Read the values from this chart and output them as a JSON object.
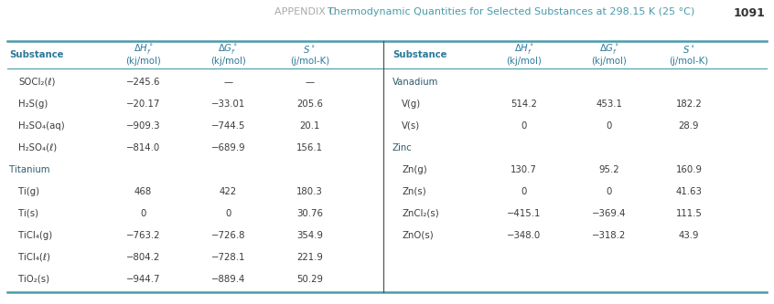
{
  "title_appendix": "APPENDIX C",
  "title_main": "  Thermodynamic Quantities for Selected Substances at 298.15 K (25 °C)",
  "page_num": "1091",
  "bg_color": "#ffffff",
  "teal_line_color": "#4a9aaa",
  "header_text_color": "#2d7a9a",
  "section_header_color": "#2d5a6e",
  "row_text_color": "#3a3a3a",
  "left_table": {
    "sections": [
      {
        "section_header": null,
        "rows": [
          {
            "substance": "SOCl₂(ℓ)",
            "dH": "−245.6",
            "dG": "—",
            "S": "—"
          },
          {
            "substance": "H₂S(g)",
            "dH": "−20.17",
            "dG": "−33.01",
            "S": "205.6"
          },
          {
            "substance": "H₂SO₄(aq)",
            "dH": "−909.3",
            "dG": "−744.5",
            "S": "20.1"
          },
          {
            "substance": "H₂SO₄(ℓ)",
            "dH": "−814.0",
            "dG": "−689.9",
            "S": "156.1"
          }
        ]
      },
      {
        "section_header": "Titanium",
        "rows": [
          {
            "substance": "Ti(g)",
            "dH": "468",
            "dG": "422",
            "S": "180.3"
          },
          {
            "substance": "Ti(s)",
            "dH": "0",
            "dG": "0",
            "S": "30.76"
          },
          {
            "substance": "TiCl₄(g)",
            "dH": "−763.2",
            "dG": "−726.8",
            "S": "354.9"
          },
          {
            "substance": "TiCl₄(ℓ)",
            "dH": "−804.2",
            "dG": "−728.1",
            "S": "221.9"
          },
          {
            "substance": "TiO₂(s)",
            "dH": "−944.7",
            "dG": "−889.4",
            "S": "50.29"
          }
        ]
      }
    ]
  },
  "right_table": {
    "sections": [
      {
        "section_header": "Vanadium",
        "rows": [
          {
            "substance": "V(g)",
            "dH": "514.2",
            "dG": "453.1",
            "S": "182.2"
          },
          {
            "substance": "V(s)",
            "dH": "0",
            "dG": "0",
            "S": "28.9"
          }
        ]
      },
      {
        "section_header": "Zinc",
        "rows": [
          {
            "substance": "Zn(g)",
            "dH": "130.7",
            "dG": "95.2",
            "S": "160.9"
          },
          {
            "substance": "Zn(s)",
            "dH": "0",
            "dG": "0",
            "S": "41.63"
          },
          {
            "substance": "ZnCl₂(s)",
            "dH": "−415.1",
            "dG": "−369.4",
            "S": "111.5"
          },
          {
            "substance": "ZnO(s)",
            "dH": "−348.0",
            "dG": "−318.2",
            "S": "43.9"
          }
        ]
      }
    ]
  }
}
